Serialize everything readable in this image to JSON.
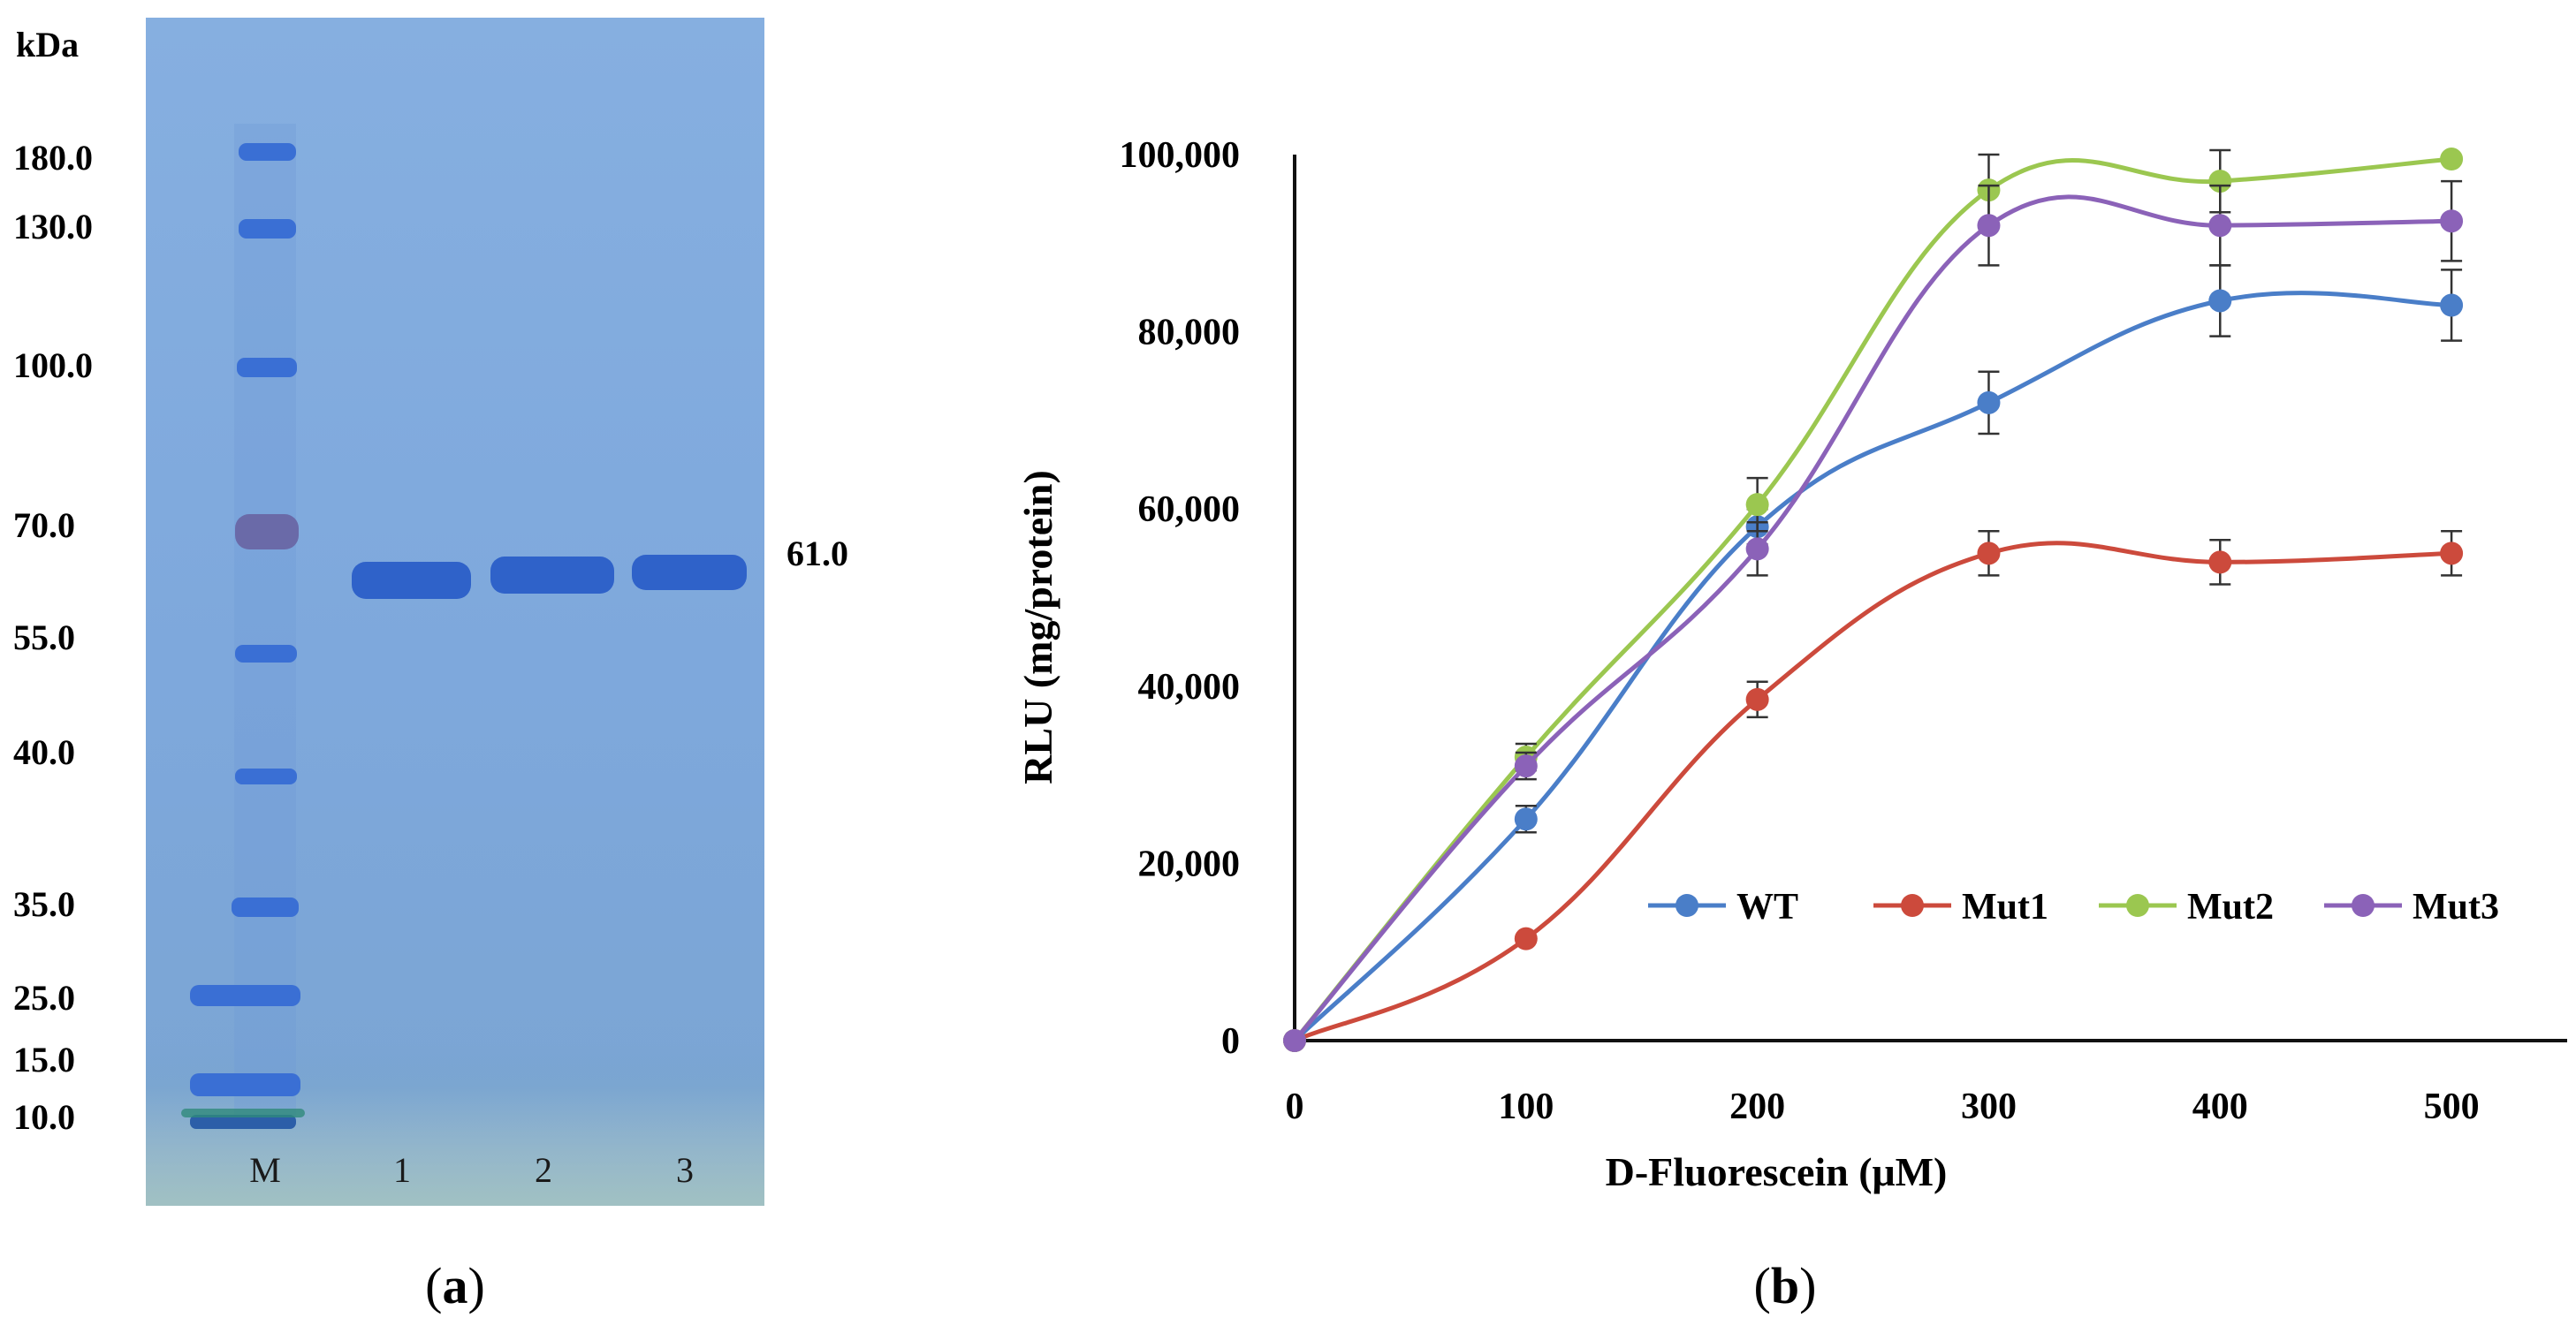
{
  "gel": {
    "unit_label": "kDa",
    "markers": [
      "180.0",
      "130.0",
      "100.0",
      "70.0",
      "55.0",
      "40.0",
      "35.0",
      "25.0",
      "15.0",
      "10.0"
    ],
    "lane_labels": [
      "M",
      "1",
      "2",
      "3"
    ],
    "band_label": "61.0",
    "panel_label_prefix": "(",
    "panel_label_letter": "a",
    "panel_label_suffix": ")",
    "colors": {
      "gel_bg": "#7fa9dd",
      "band": "#2f62c9",
      "marker_band": "#3a6fd4",
      "marker_70": "#6a6aa8"
    }
  },
  "chart_data": {
    "type": "line",
    "title": "",
    "xlabel": "D-Fluorescein (μM)",
    "ylabel": "RLU (mg/protein)",
    "x": [
      0,
      100,
      200,
      300,
      400,
      500
    ],
    "xlim": [
      0,
      550
    ],
    "ylim": [
      0,
      100000
    ],
    "x_ticks": [
      "0",
      "100",
      "200",
      "300",
      "400",
      "500"
    ],
    "y_ticks": [
      "0",
      "20,000",
      "40,000",
      "60,000",
      "80,000",
      "100,000"
    ],
    "y_tick_values": [
      0,
      20000,
      40000,
      60000,
      80000,
      100000
    ],
    "grid": false,
    "legend_position": "lower-right",
    "series": [
      {
        "name": "WT",
        "color": "#4a7ec8",
        "values": [
          0,
          25000,
          58000,
          72000,
          83500,
          83000
        ],
        "errors": [
          0,
          1500,
          2000,
          3500,
          4000,
          4000
        ]
      },
      {
        "name": "Mut1",
        "color": "#cc4a3c",
        "values": [
          0,
          11500,
          38500,
          55000,
          54000,
          55000
        ],
        "errors": [
          0,
          0,
          2000,
          2500,
          2500,
          2500
        ]
      },
      {
        "name": "Mut2",
        "color": "#9bc750",
        "values": [
          0,
          32000,
          60500,
          96000,
          97000,
          99500
        ],
        "errors": [
          0,
          1500,
          3000,
          4000,
          3500,
          0
        ]
      },
      {
        "name": "Mut3",
        "color": "#8b62b8",
        "values": [
          0,
          31000,
          55500,
          92000,
          92000,
          92500
        ],
        "errors": [
          0,
          1500,
          3000,
          4500,
          4500,
          4500
        ]
      }
    ],
    "panel_label_prefix": "(",
    "panel_label_letter": "b",
    "panel_label_suffix": ")"
  }
}
